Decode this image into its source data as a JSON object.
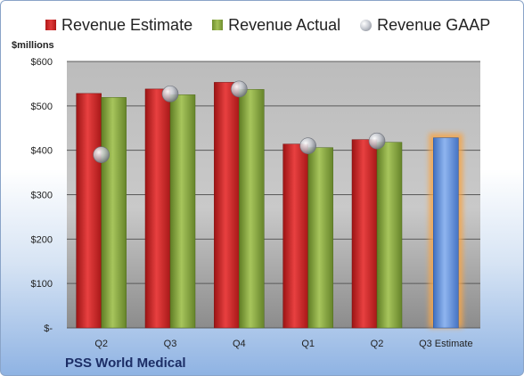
{
  "chart_data": {
    "type": "bar",
    "categories": [
      "Q2",
      "Q3",
      "Q4",
      "Q1",
      "Q2",
      "Q3 Estimate"
    ],
    "series": [
      {
        "name": "Revenue Estimate",
        "values": [
          528,
          538,
          553,
          414,
          424,
          null
        ],
        "color": "#c62828"
      },
      {
        "name": "Revenue Actual",
        "values": [
          519,
          525,
          537,
          406,
          418,
          null
        ],
        "color": "#8aab45"
      },
      {
        "name": "Revenue GAAP",
        "values": [
          390,
          527,
          538,
          410,
          421,
          null
        ],
        "color": "#b8bcc4"
      }
    ],
    "highlight": {
      "category": "Q3 Estimate",
      "value": 428,
      "color": "#6f9be0",
      "glow": "#f5a54a"
    },
    "ylabel": "$millions",
    "ylim": [
      0,
      600
    ],
    "yticks": [
      0,
      100,
      200,
      300,
      400,
      500,
      600
    ],
    "ytick_labels": [
      "$-",
      "$100",
      "$200",
      "$300",
      "$400",
      "$500",
      "$600"
    ],
    "grid": true,
    "legend": "top",
    "footer": "PSS World Medical"
  }
}
